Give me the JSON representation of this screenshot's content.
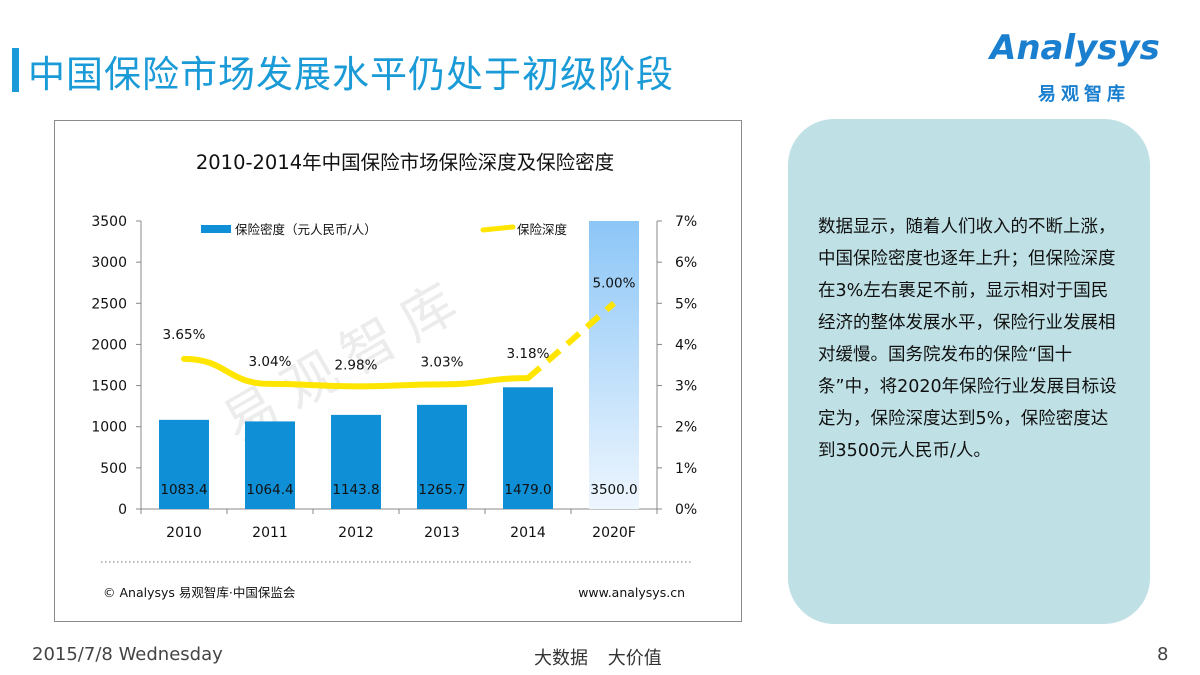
{
  "page": {
    "title": "中国保险市场发展水平仍处于初级阶段",
    "logo_text": "Analysys",
    "logo_cn": "易观智库",
    "footer_date": "2015/7/8 Wednesday",
    "footer_slogan": "大数据 大价值",
    "page_number": "8"
  },
  "note": {
    "text": "数据显示，随着人们收入的不断上涨，中国保险密度也逐年上升；但保险深度在3%左右裹足不前，显示相对于国民经济的整体发展水平，保险行业发展相对缓慢。国务院发布的保险“国十条”中，将2020年保险行业发展目标设定为，保险深度达到5%，保险密度达到3500元人民币/人。"
  },
  "chart_data": {
    "type": "bar",
    "title": "2010-2014年中国保险市场保险深度及保险密度",
    "categories": [
      "2010",
      "2011",
      "2012",
      "2013",
      "2014",
      "2020F"
    ],
    "series": [
      {
        "name": "保险密度（元人民币/人）",
        "type": "bar",
        "axis": "left",
        "values": [
          1083.4,
          1064.4,
          1143.8,
          1265.7,
          1479.0,
          3500.0
        ],
        "labels": [
          "1083.4",
          "1064.4",
          "1143.8",
          "1265.7",
          "1479.0",
          "3500.0"
        ],
        "color": "#0f8fd6",
        "forecast_color": "#8cc6f7"
      },
      {
        "name": "保险深度",
        "type": "line",
        "axis": "right",
        "values": [
          3.65,
          3.04,
          2.98,
          3.03,
          3.18,
          5.0
        ],
        "labels": [
          "3.65%",
          "3.04%",
          "2.98%",
          "3.03%",
          "3.18%",
          "5.00%"
        ],
        "color": "#ffe500",
        "forecast_dashed_from_index": 4
      }
    ],
    "y_left": {
      "min": 0,
      "max": 3500,
      "ticks": [
        "0",
        "500",
        "1000",
        "1500",
        "2000",
        "2500",
        "3000",
        "3500"
      ]
    },
    "y_right": {
      "min": 0,
      "max": 7,
      "ticks": [
        "0%",
        "1%",
        "2%",
        "3%",
        "4%",
        "5%",
        "6%",
        "7%"
      ]
    },
    "legend_position": "top",
    "watermark": "易观智库",
    "source_left": "© Analysys 易观智库·中国保监会",
    "source_right": "www.analysys.cn"
  }
}
